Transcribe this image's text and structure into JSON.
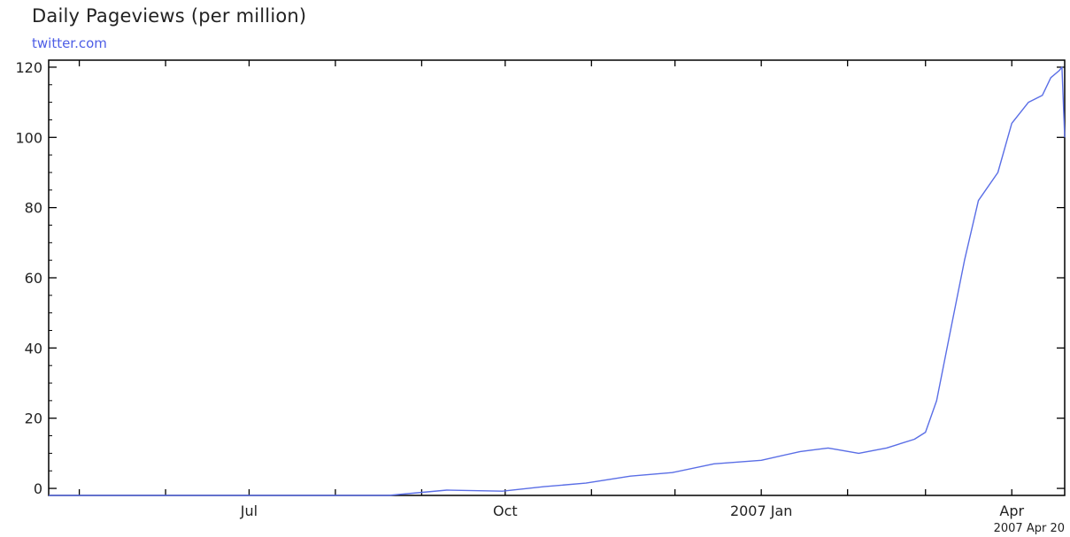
{
  "chart_data": {
    "type": "line",
    "title": "Daily Pageviews (per million)",
    "subtitle": "twitter.com",
    "xlabel": "",
    "ylabel": "",
    "ylim": [
      -2,
      122
    ],
    "yticks": [
      0,
      20,
      40,
      60,
      80,
      100,
      120
    ],
    "xlim": [
      "2006-04-20",
      "2007-04-20"
    ],
    "xticks": [
      {
        "label": "Jul",
        "date": "2006-07-01"
      },
      {
        "label": "Oct",
        "date": "2006-10-01"
      },
      {
        "label": "2007 Jan",
        "date": "2007-01-01"
      },
      {
        "label": "Apr",
        "date": "2007-04-01"
      }
    ],
    "minor_ticks": [
      "2006-05-01",
      "2006-06-01",
      "2006-07-01",
      "2006-08-01",
      "2006-09-01",
      "2006-10-01",
      "2006-11-01",
      "2006-12-01",
      "2007-01-01",
      "2007-02-01",
      "2007-03-01",
      "2007-04-01"
    ],
    "end_date_label": "2007 Apr 20",
    "grid": false,
    "line_color": "#5a6ee6",
    "series": [
      {
        "x": [
          "2006-04-20",
          "2006-08-20",
          "2006-09-10",
          "2006-09-30",
          "2006-10-15",
          "2006-10-30",
          "2006-11-15",
          "2006-11-30",
          "2006-12-15",
          "2007-01-01",
          "2007-01-15",
          "2007-01-25",
          "2007-02-05",
          "2007-02-15",
          "2007-02-25",
          "2007-03-01",
          "2007-03-05",
          "2007-03-10",
          "2007-03-15",
          "2007-03-20",
          "2007-03-27",
          "2007-04-01",
          "2007-04-07",
          "2007-04-12",
          "2007-04-15",
          "2007-04-18",
          "2007-04-19",
          "2007-04-20"
        ],
        "values": [
          -2,
          -2,
          -0.5,
          -0.8,
          0.5,
          1.5,
          3.5,
          4.5,
          7,
          8,
          10.5,
          11.5,
          10,
          11.5,
          14,
          16,
          25,
          45,
          65,
          82,
          90,
          104,
          110,
          112,
          117,
          119,
          120,
          100
        ]
      }
    ]
  }
}
